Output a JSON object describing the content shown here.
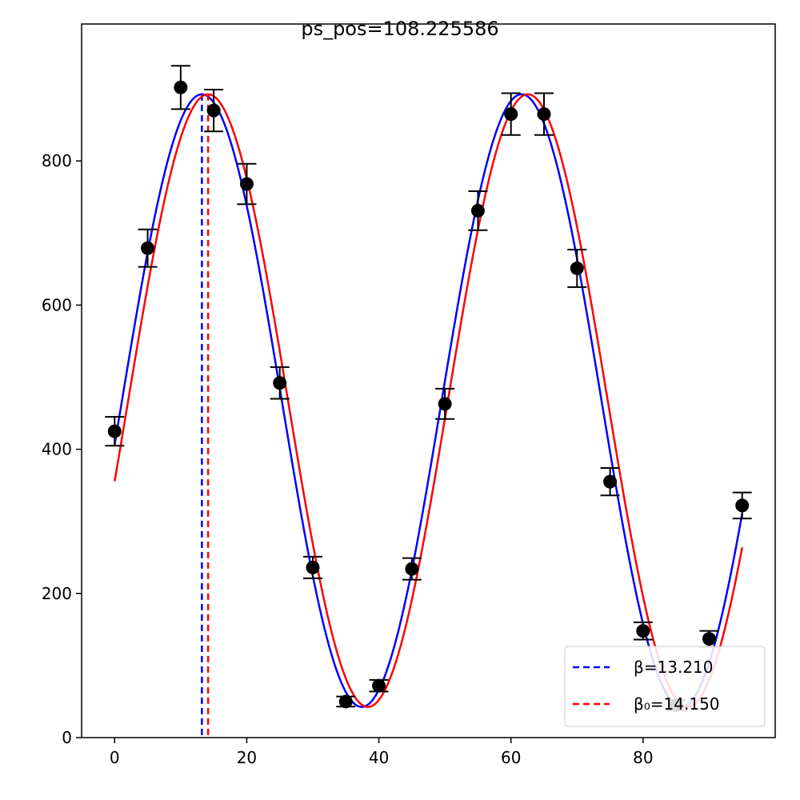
{
  "chart_data": {
    "type": "scatter",
    "title": "ps_pos=108.225586",
    "xlabel": "",
    "ylabel": "",
    "xlim": [
      -5,
      100
    ],
    "ylim": [
      0,
      990
    ],
    "x_ticks": [
      0,
      20,
      40,
      60,
      80
    ],
    "y_ticks": [
      0,
      200,
      400,
      600,
      800
    ],
    "grid": false,
    "legend_position": "lower-right",
    "points": {
      "color": "#000000",
      "x": [
        0,
        5,
        10,
        15,
        20,
        25,
        30,
        35,
        40,
        45,
        50,
        55,
        60,
        65,
        70,
        75,
        80,
        85,
        90,
        95
      ],
      "y": [
        425,
        679,
        902,
        870,
        768,
        492,
        236,
        50,
        72,
        234,
        463,
        731,
        865,
        865,
        651,
        355,
        148,
        45,
        137,
        322
      ],
      "err": [
        20,
        26,
        30,
        29,
        28,
        22,
        15,
        7,
        8,
        15,
        21,
        27,
        29,
        29,
        26,
        19,
        12,
        7,
        11,
        18
      ]
    },
    "curves": [
      {
        "name": "β=13.210",
        "color": "#0000ff",
        "x_range": [
          0,
          95
        ],
        "center": 467.5,
        "amplitude": 425,
        "period": 48.4,
        "peak_x": 13.21,
        "vline_x": 13.21
      },
      {
        "name": "β₀=14.150",
        "color": "#ff0000",
        "x_range": [
          0,
          95
        ],
        "center": 467.5,
        "amplitude": 425,
        "period": 48.4,
        "peak_x": 14.15,
        "vline_x": 14.15
      }
    ]
  }
}
